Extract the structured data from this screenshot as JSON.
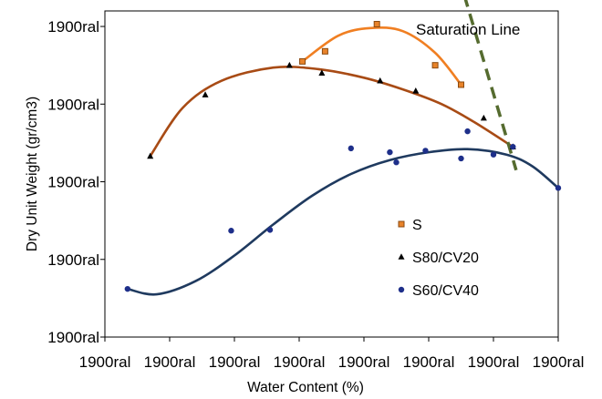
{
  "chart_data": {
    "type": "scatter",
    "xlabel": "Water Content (%)",
    "ylabel": "Dry Unit Weight (gr/cm3)",
    "xlim": [
      0,
      7
    ],
    "ylim": [
      0,
      4.2
    ],
    "x_ticks": [
      {
        "value": 0,
        "label": "1900ral"
      },
      {
        "value": 1,
        "label": "1900ral"
      },
      {
        "value": 2,
        "label": "1900ral"
      },
      {
        "value": 3,
        "label": "1900ral"
      },
      {
        "value": 4,
        "label": "1900ral"
      },
      {
        "value": 5,
        "label": "1900ral"
      },
      {
        "value": 6,
        "label": "1900ral"
      },
      {
        "value": 7,
        "label": "1900ral"
      }
    ],
    "y_ticks": [
      {
        "value": 0,
        "label": "1900ral"
      },
      {
        "value": 1,
        "label": "1900ral"
      },
      {
        "value": 2,
        "label": "1900ral"
      },
      {
        "value": 3,
        "label": "1900ral"
      },
      {
        "value": 4,
        "label": "1900ral"
      }
    ],
    "grid": false,
    "legend_position": "right-inside",
    "annotation": {
      "text": "Saturation Line",
      "color": "#556b2f"
    },
    "saturation_line": {
      "x": [
        5.55,
        6.35
      ],
      "y": [
        4.4,
        2.15
      ]
    },
    "series": [
      {
        "name": "S",
        "marker": "square",
        "marker_color": "#e8832a",
        "marker_edge": "#8a4a10",
        "curve_color": "#f07f22",
        "points": [
          {
            "x": 3.05,
            "y": 3.55
          },
          {
            "x": 3.4,
            "y": 3.68
          },
          {
            "x": 4.2,
            "y": 4.03
          },
          {
            "x": 5.1,
            "y": 3.5
          },
          {
            "x": 5.5,
            "y": 3.25
          }
        ],
        "curve": [
          {
            "x": 3.05,
            "y": 3.55
          },
          {
            "x": 3.6,
            "y": 3.88
          },
          {
            "x": 4.1,
            "y": 3.98
          },
          {
            "x": 4.6,
            "y": 3.94
          },
          {
            "x": 5.1,
            "y": 3.66
          },
          {
            "x": 5.5,
            "y": 3.25
          }
        ]
      },
      {
        "name": "S80/CV20",
        "marker": "triangle",
        "marker_color": "#000000",
        "curve_color": "#a84b15",
        "points": [
          {
            "x": 0.7,
            "y": 2.33
          },
          {
            "x": 1.55,
            "y": 3.12
          },
          {
            "x": 2.85,
            "y": 3.5
          },
          {
            "x": 3.35,
            "y": 3.4
          },
          {
            "x": 4.25,
            "y": 3.3
          },
          {
            "x": 4.8,
            "y": 3.17
          },
          {
            "x": 5.85,
            "y": 2.82
          },
          {
            "x": 6.3,
            "y": 2.45
          }
        ],
        "curve": [
          {
            "x": 0.7,
            "y": 2.33
          },
          {
            "x": 1.2,
            "y": 2.95
          },
          {
            "x": 1.8,
            "y": 3.3
          },
          {
            "x": 2.6,
            "y": 3.47
          },
          {
            "x": 3.3,
            "y": 3.45
          },
          {
            "x": 4.0,
            "y": 3.34
          },
          {
            "x": 4.6,
            "y": 3.19
          },
          {
            "x": 5.2,
            "y": 3.0
          },
          {
            "x": 5.7,
            "y": 2.77
          },
          {
            "x": 6.3,
            "y": 2.45
          }
        ]
      },
      {
        "name": "S60/CV40",
        "marker": "circle",
        "marker_color": "#1e2f8a",
        "curve_color": "#1f3a5f",
        "points": [
          {
            "x": 0.35,
            "y": 0.62
          },
          {
            "x": 1.95,
            "y": 1.37
          },
          {
            "x": 2.55,
            "y": 1.38
          },
          {
            "x": 3.8,
            "y": 2.43
          },
          {
            "x": 4.4,
            "y": 2.38
          },
          {
            "x": 4.5,
            "y": 2.25
          },
          {
            "x": 4.95,
            "y": 2.4
          },
          {
            "x": 5.5,
            "y": 2.3
          },
          {
            "x": 5.6,
            "y": 2.65
          },
          {
            "x": 6.3,
            "y": 2.45
          },
          {
            "x": 6.0,
            "y": 2.35
          },
          {
            "x": 7.0,
            "y": 1.92
          }
        ],
        "curve": [
          {
            "x": 0.35,
            "y": 0.62
          },
          {
            "x": 0.8,
            "y": 0.55
          },
          {
            "x": 1.4,
            "y": 0.72
          },
          {
            "x": 2.0,
            "y": 1.05
          },
          {
            "x": 2.6,
            "y": 1.45
          },
          {
            "x": 3.2,
            "y": 1.82
          },
          {
            "x": 3.8,
            "y": 2.1
          },
          {
            "x": 4.4,
            "y": 2.28
          },
          {
            "x": 5.0,
            "y": 2.38
          },
          {
            "x": 5.6,
            "y": 2.42
          },
          {
            "x": 6.2,
            "y": 2.35
          },
          {
            "x": 6.6,
            "y": 2.2
          },
          {
            "x": 7.0,
            "y": 1.92
          }
        ]
      }
    ]
  }
}
